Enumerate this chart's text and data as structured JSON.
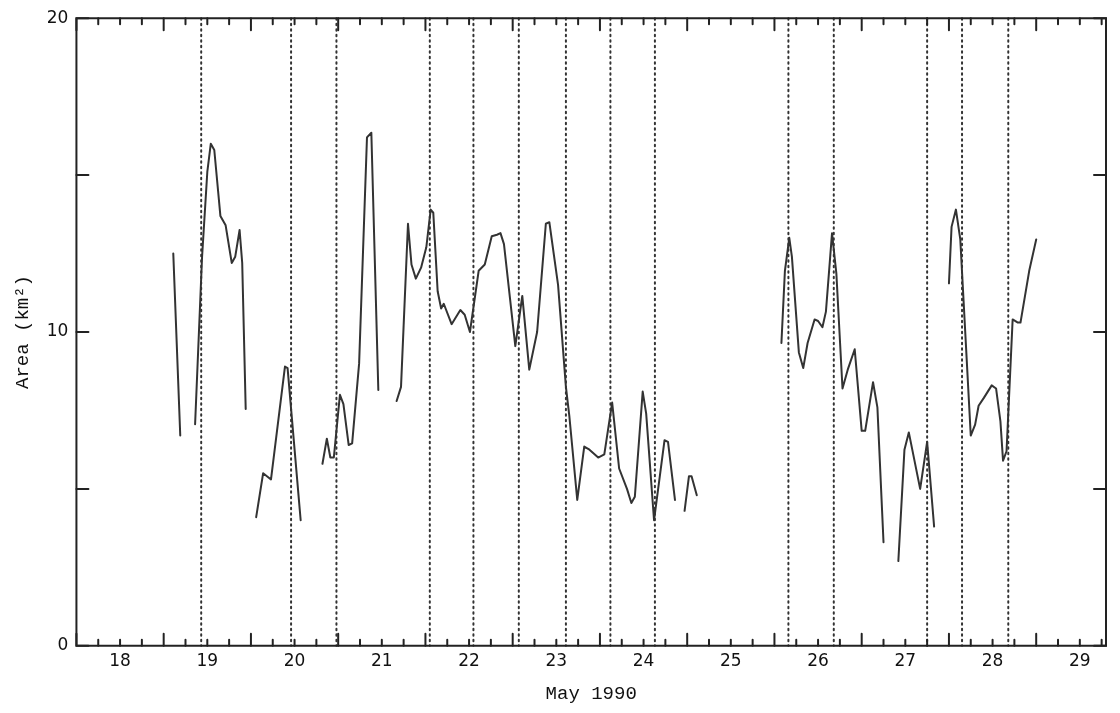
{
  "chart_data": {
    "type": "line",
    "xlabel": "May 1990",
    "ylabel": "Area (km²)",
    "xlim": [
      18,
      29.8
    ],
    "ylim": [
      0,
      20
    ],
    "xticks": [
      {
        "value": 18,
        "label": null
      },
      {
        "value": 18.25,
        "label": null
      },
      {
        "value": 18.5,
        "label": "18"
      },
      {
        "value": 18.75,
        "label": null
      },
      {
        "value": 19,
        "label": null
      },
      {
        "value": 19.25,
        "label": null
      },
      {
        "value": 19.5,
        "label": "19"
      },
      {
        "value": 19.75,
        "label": null
      },
      {
        "value": 20,
        "label": null
      },
      {
        "value": 20.25,
        "label": null
      },
      {
        "value": 20.5,
        "label": "20"
      },
      {
        "value": 20.75,
        "label": null
      },
      {
        "value": 21,
        "label": null
      },
      {
        "value": 21.25,
        "label": null
      },
      {
        "value": 21.5,
        "label": "21"
      },
      {
        "value": 21.75,
        "label": null
      },
      {
        "value": 22,
        "label": null
      },
      {
        "value": 22.25,
        "label": null
      },
      {
        "value": 22.5,
        "label": "22"
      },
      {
        "value": 22.75,
        "label": null
      },
      {
        "value": 23,
        "label": null
      },
      {
        "value": 23.25,
        "label": null
      },
      {
        "value": 23.5,
        "label": "23"
      },
      {
        "value": 23.75,
        "label": null
      },
      {
        "value": 24,
        "label": null
      },
      {
        "value": 24.25,
        "label": null
      },
      {
        "value": 24.5,
        "label": "24"
      },
      {
        "value": 24.75,
        "label": null
      },
      {
        "value": 25,
        "label": null
      },
      {
        "value": 25.25,
        "label": null
      },
      {
        "value": 25.5,
        "label": "25"
      },
      {
        "value": 25.75,
        "label": null
      },
      {
        "value": 26,
        "label": null
      },
      {
        "value": 26.25,
        "label": null
      },
      {
        "value": 26.5,
        "label": "26"
      },
      {
        "value": 26.75,
        "label": null
      },
      {
        "value": 27,
        "label": null
      },
      {
        "value": 27.25,
        "label": null
      },
      {
        "value": 27.5,
        "label": "27"
      },
      {
        "value": 27.75,
        "label": null
      },
      {
        "value": 28,
        "label": null
      },
      {
        "value": 28.25,
        "label": null
      },
      {
        "value": 28.5,
        "label": "28"
      },
      {
        "value": 28.75,
        "label": null
      },
      {
        "value": 29,
        "label": null
      },
      {
        "value": 29.25,
        "label": null
      },
      {
        "value": 29.5,
        "label": "29"
      },
      {
        "value": 29.75,
        "label": null
      }
    ],
    "yticks": [
      0,
      {
        "value": 5,
        "label": null
      },
      10,
      {
        "value": 15,
        "label": null
      },
      20
    ],
    "grid": false,
    "legend": false,
    "marker": "none",
    "line_style": "solid",
    "ref_lines": [
      {
        "axis": "x",
        "value": 19.43,
        "line_style": "dotted",
        "color": "#333333"
      },
      {
        "axis": "x",
        "value": 20.46,
        "line_style": "dotted",
        "color": "#333333"
      },
      {
        "axis": "x",
        "value": 20.98,
        "line_style": "dotted",
        "color": "#333333"
      },
      {
        "axis": "x",
        "value": 22.05,
        "line_style": "dotted",
        "color": "#333333"
      },
      {
        "axis": "x",
        "value": 22.55,
        "line_style": "dotted",
        "color": "#333333"
      },
      {
        "axis": "x",
        "value": 23.07,
        "line_style": "dotted",
        "color": "#333333"
      },
      {
        "axis": "x",
        "value": 23.61,
        "line_style": "dotted",
        "color": "#333333"
      },
      {
        "axis": "x",
        "value": 24.12,
        "line_style": "dotted",
        "color": "#333333"
      },
      {
        "axis": "x",
        "value": 24.63,
        "line_style": "dotted",
        "color": "#333333"
      },
      {
        "axis": "x",
        "value": 26.16,
        "line_style": "dotted",
        "color": "#333333"
      },
      {
        "axis": "x",
        "value": 26.68,
        "line_style": "dotted",
        "color": "#333333"
      },
      {
        "axis": "x",
        "value": 27.75,
        "line_style": "dotted",
        "color": "#333333"
      },
      {
        "axis": "x",
        "value": 28.15,
        "line_style": "dotted",
        "color": "#333333"
      },
      {
        "axis": "x",
        "value": 28.68,
        "line_style": "dotted",
        "color": "#333333"
      }
    ],
    "series": [
      {
        "color": "#333333",
        "x": [
          19.11,
          19.19,
          19.27,
          19.36,
          19.44,
          19.5,
          19.54,
          19.58,
          19.65,
          19.71,
          19.78,
          19.82,
          19.87,
          19.9,
          19.94,
          20.0,
          20.06,
          20.14,
          20.23,
          20.39,
          20.42,
          20.57,
          20.7,
          20.82,
          20.87,
          20.91,
          20.95,
          21.02,
          21.06,
          21.12,
          21.16,
          21.24,
          21.33,
          21.38,
          21.46,
          21.56,
          21.67,
          21.72,
          21.8,
          21.84,
          21.89,
          21.95,
          22.01,
          22.06,
          22.09,
          22.14,
          22.18,
          22.21,
          22.3,
          22.4,
          22.45,
          22.51,
          22.61,
          22.68,
          22.76,
          22.82,
          22.86,
          22.9,
          23.03,
          23.11,
          23.19,
          23.28,
          23.38,
          23.42,
          23.52,
          23.61,
          23.65,
          23.74,
          23.82,
          23.88,
          23.98,
          24.05,
          24.14,
          24.22,
          24.31,
          24.36,
          24.4,
          24.49,
          24.53,
          24.62,
          24.74,
          24.78,
          24.86,
          24.92,
          24.97,
          25.02,
          25.05,
          25.11,
          25.6,
          26.08,
          26.12,
          26.17,
          26.2,
          26.28,
          26.33,
          26.38,
          26.46,
          26.5,
          26.55,
          26.59,
          26.66,
          26.71,
          26.78,
          26.84,
          26.92,
          27.0,
          27.04,
          27.13,
          27.18,
          27.25,
          27.33,
          27.42,
          27.49,
          27.54,
          27.67,
          27.75,
          27.83,
          27.92,
          28.0,
          28.03,
          28.08,
          28.13,
          28.25,
          28.3,
          28.34,
          28.4,
          28.49,
          28.54,
          28.59,
          28.62,
          28.66,
          28.73,
          28.79,
          28.82,
          28.92,
          29.0
        ],
        "values": [
          12.5,
          6.7,
          null,
          7.06,
          12.4,
          15.1,
          16.0,
          15.8,
          13.7,
          13.4,
          12.2,
          12.4,
          13.25,
          12.2,
          7.55,
          null,
          4.1,
          5.5,
          5.3,
          8.9,
          8.85,
          4.0,
          null,
          5.8,
          6.6,
          6.0,
          6.0,
          8.0,
          7.7,
          6.4,
          6.45,
          9.0,
          16.2,
          16.35,
          8.15,
          null,
          7.8,
          8.25,
          13.45,
          12.15,
          11.7,
          12.05,
          12.7,
          13.9,
          13.8,
          11.3,
          10.75,
          10.9,
          10.25,
          10.7,
          10.55,
          10.0,
          11.95,
          12.15,
          13.05,
          13.1,
          13.15,
          12.8,
          9.55,
          11.15,
          8.8,
          10.0,
          13.45,
          13.5,
          11.5,
          8.25,
          7.3,
          4.65,
          6.35,
          6.25,
          6.0,
          6.1,
          7.75,
          5.65,
          5.0,
          4.55,
          4.75,
          8.1,
          7.4,
          4.0,
          6.55,
          6.5,
          4.65,
          null,
          4.3,
          5.4,
          5.4,
          4.8,
          null,
          9.65,
          11.95,
          13.0,
          12.4,
          9.35,
          8.85,
          9.65,
          10.4,
          10.35,
          10.15,
          10.65,
          13.15,
          11.85,
          8.2,
          8.8,
          9.45,
          6.85,
          6.85,
          8.4,
          7.6,
          3.3,
          null,
          2.7,
          6.25,
          6.8,
          5.0,
          6.5,
          3.8,
          null,
          11.55,
          13.35,
          13.9,
          12.95,
          6.7,
          7.05,
          7.65,
          7.9,
          8.3,
          8.2,
          7.15,
          5.9,
          6.2,
          10.4,
          10.3,
          10.3,
          11.95,
          12.95
        ]
      }
    ]
  }
}
